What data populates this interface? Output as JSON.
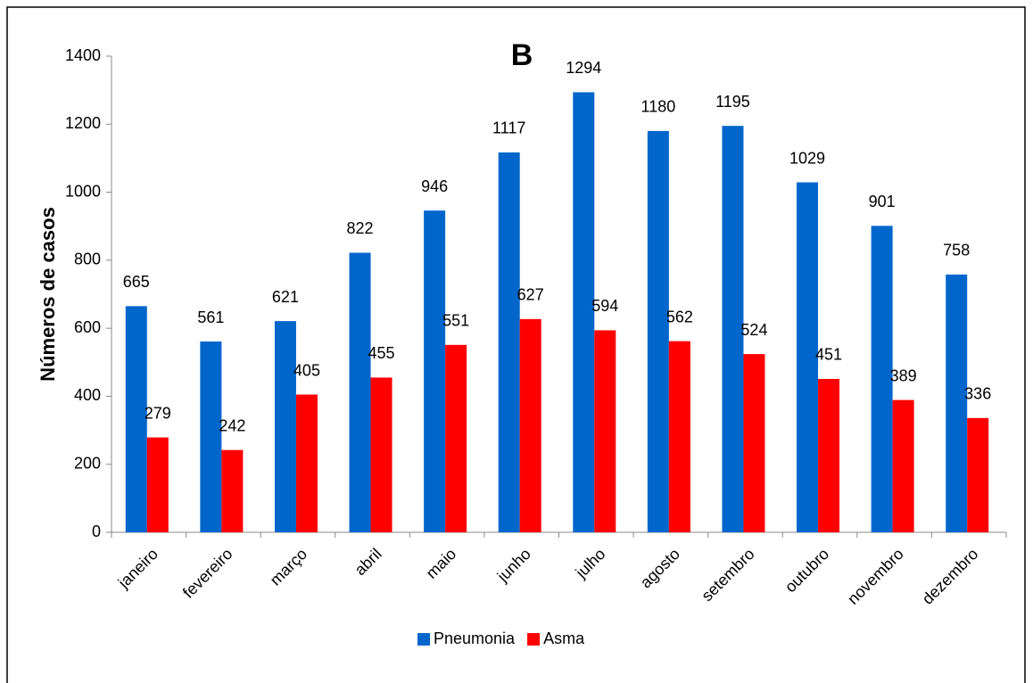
{
  "chart_data": {
    "type": "bar",
    "title": "B",
    "ylabel": "Números de casos",
    "categories": [
      "janeiro",
      "fevereiro",
      "março",
      "abril",
      "maio",
      "junho",
      "julho",
      "agosto",
      "setembro",
      "outubro",
      "novembro",
      "dezembro"
    ],
    "series": [
      {
        "name": "Pneumonia",
        "color": "#0066cc",
        "values": [
          665,
          561,
          621,
          822,
          946,
          1117,
          1294,
          1180,
          1195,
          1029,
          901,
          758
        ]
      },
      {
        "name": "Asma",
        "color": "#ff0000",
        "values": [
          279,
          242,
          405,
          455,
          551,
          627,
          594,
          562,
          524,
          451,
          389,
          336
        ]
      }
    ],
    "ylim": [
      0,
      1400
    ],
    "yticks": [
      0,
      200,
      400,
      600,
      800,
      1000,
      1200,
      1400
    ],
    "legend": "bottom"
  }
}
